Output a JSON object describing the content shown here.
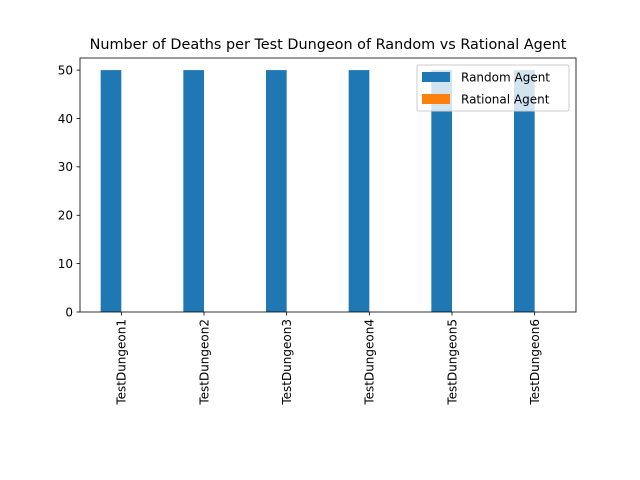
{
  "chart_data": {
    "type": "bar",
    "title": "Number of Deaths per Test Dungeon of Random vs Rational Agent",
    "xlabel": "",
    "ylabel": "",
    "categories": [
      "TestDungeon1",
      "TestDungeon2",
      "TestDungeon3",
      "TestDungeon4",
      "TestDungeon5",
      "TestDungeon6"
    ],
    "series": [
      {
        "name": "Random Agent",
        "values": [
          50,
          50,
          50,
          50,
          50,
          50
        ],
        "color": "#1f77b4"
      },
      {
        "name": "Rational Agent",
        "values": [
          0,
          0,
          0,
          0,
          0,
          0
        ],
        "color": "#ff7f0e"
      }
    ],
    "ylim": [
      0,
      52.5
    ],
    "yticks": [
      0,
      10,
      20,
      30,
      40,
      50
    ],
    "grid": false,
    "legend_position": "top-right"
  }
}
